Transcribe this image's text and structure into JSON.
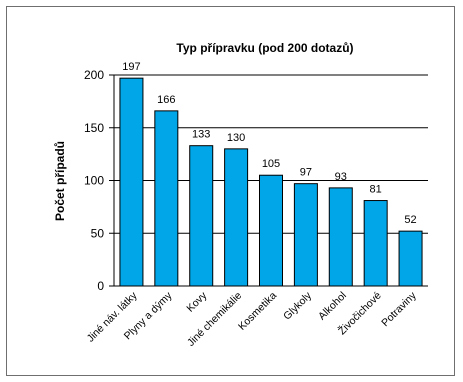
{
  "chart_data": {
    "type": "bar",
    "title": "Typ přípravku (pod 200 dotazů)",
    "xlabel": "",
    "ylabel": "Počet případů",
    "categories": [
      "Jiné náv. látky",
      "Plyny a dýmy",
      "Kovy",
      "Jiné chemikálie",
      "Kosmetika",
      "Glykoly",
      "Alkohol",
      "Živočichové",
      "Potraviny"
    ],
    "values": [
      197,
      166,
      133,
      130,
      105,
      97,
      93,
      81,
      52
    ],
    "ylim": [
      0,
      200
    ],
    "yticks": [
      "0",
      "50",
      "100",
      "150",
      "200"
    ],
    "grid": true,
    "colors": {
      "bar": "#00a6e8",
      "bar_stroke": "#000000",
      "grid": "#000000"
    }
  }
}
